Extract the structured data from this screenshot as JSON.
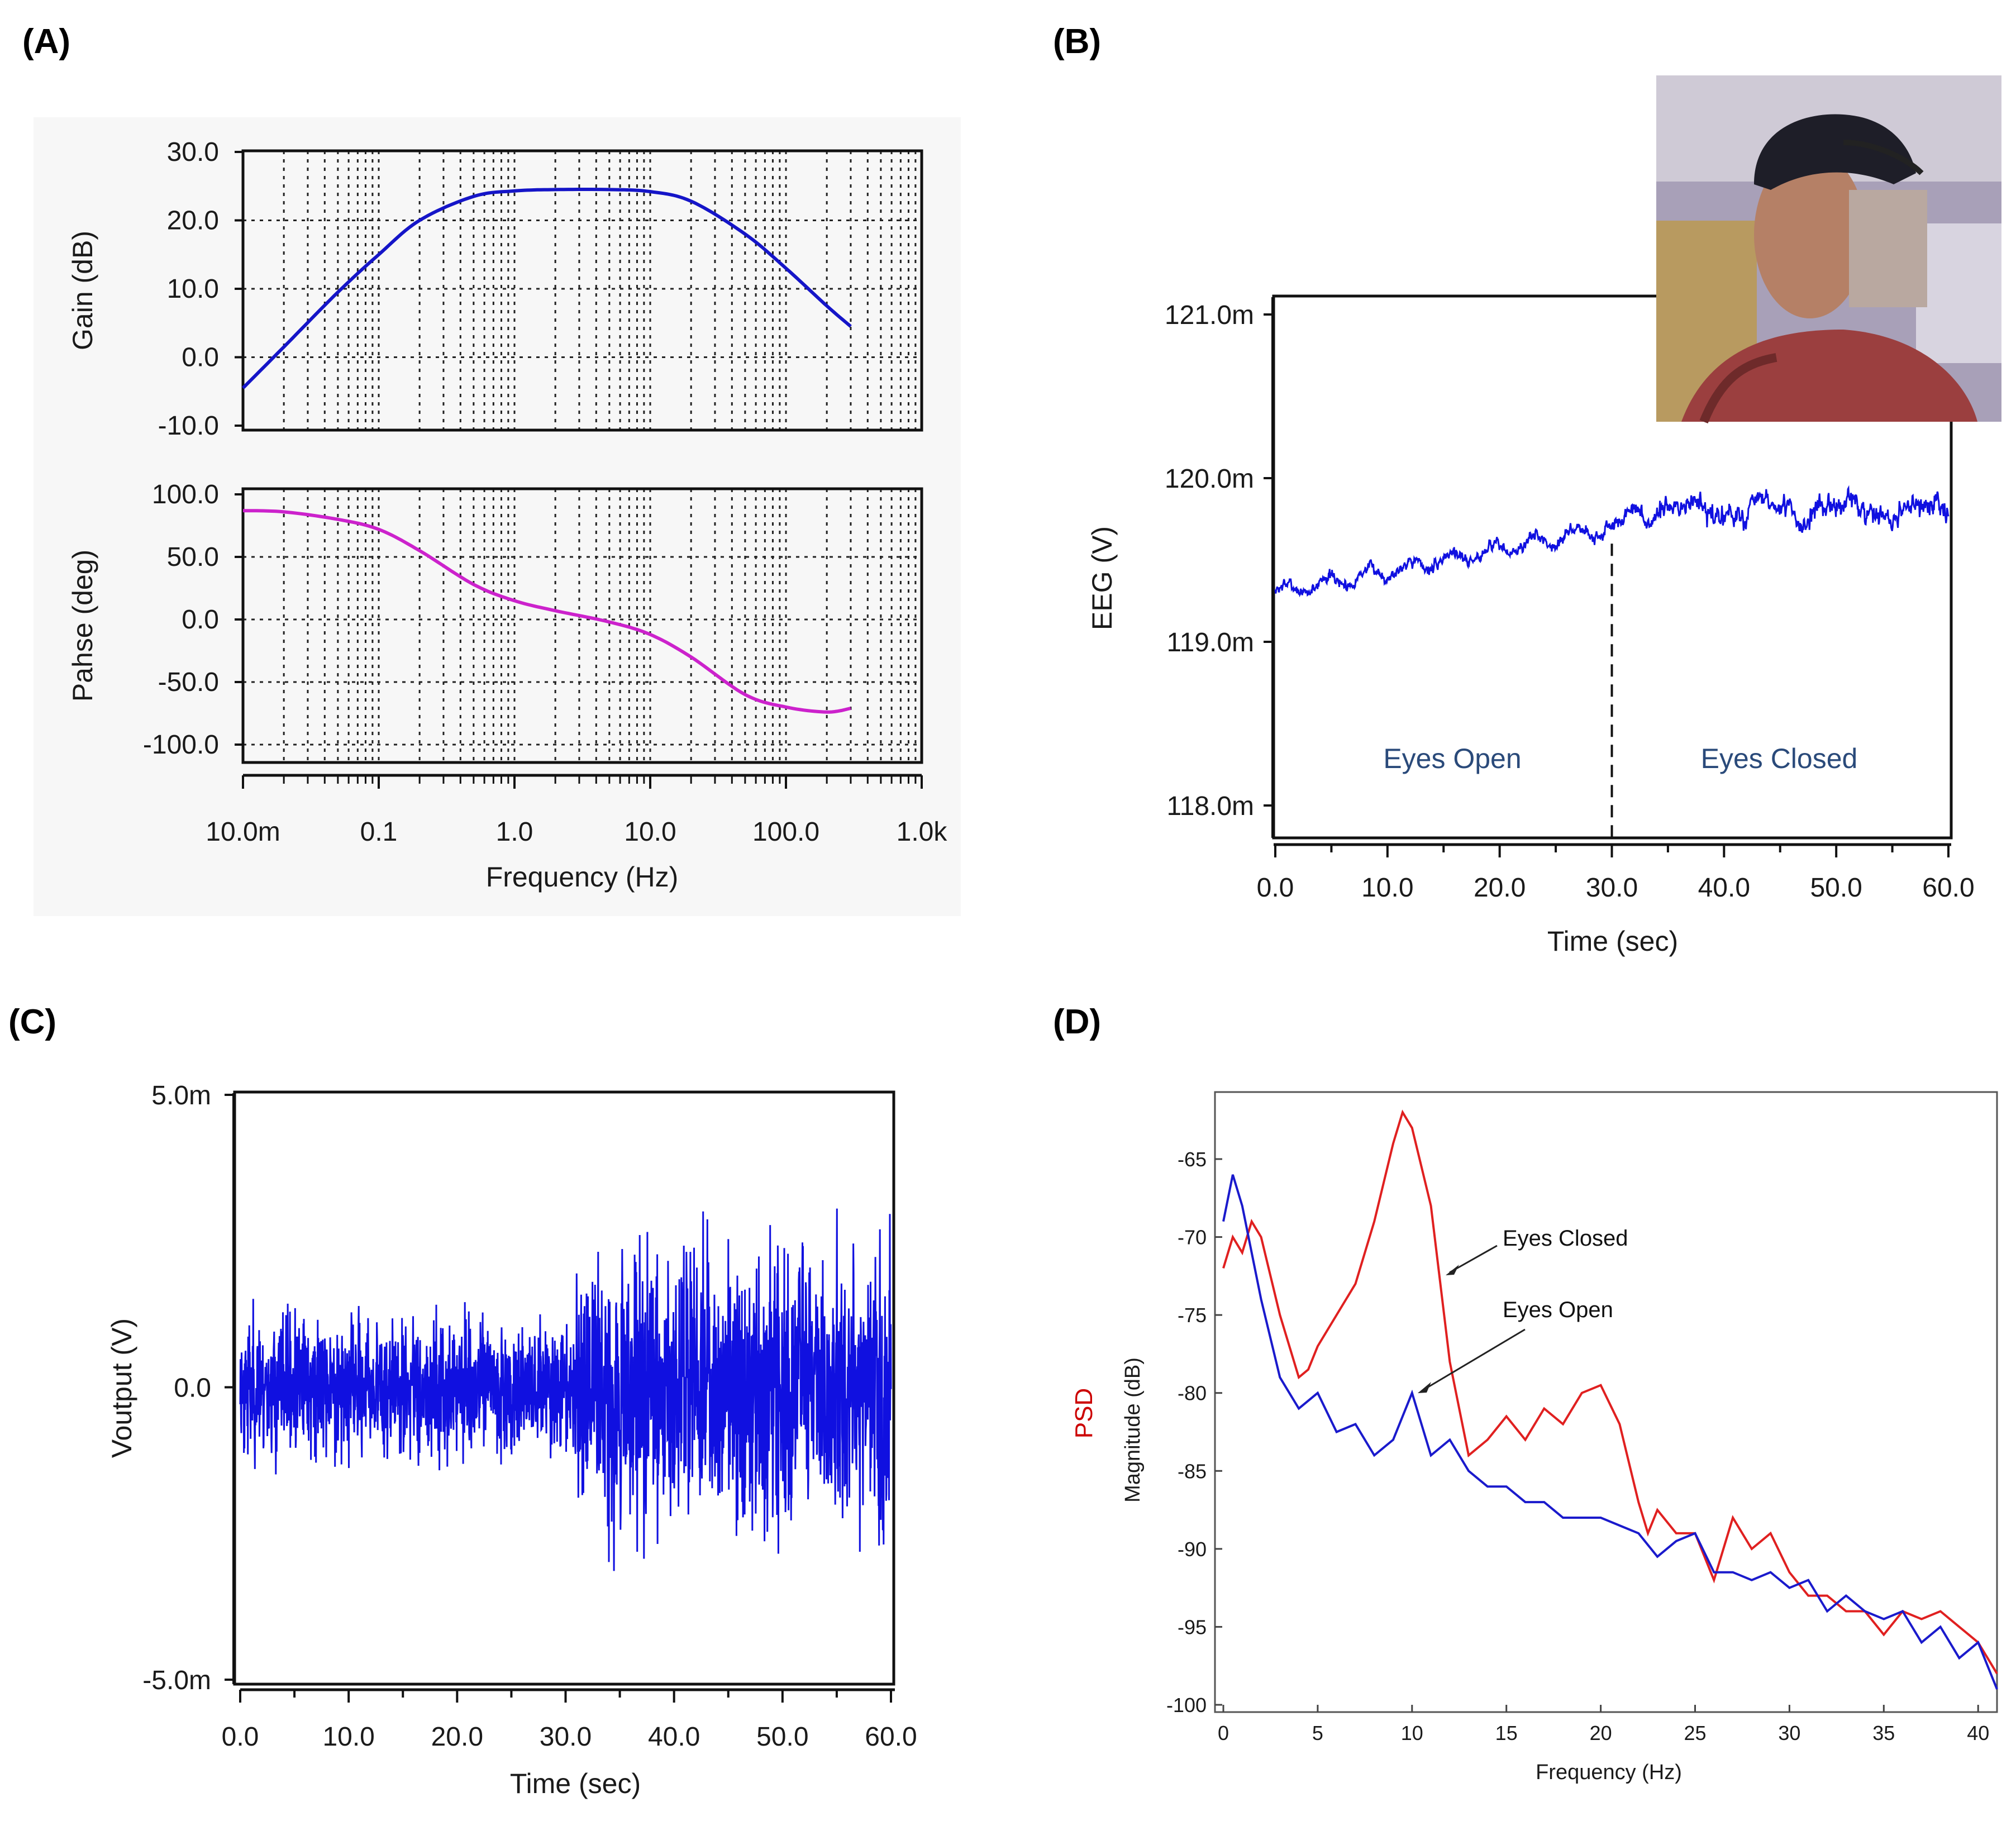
{
  "panel_labels": [
    "(A)",
    "(B)",
    "(C)",
    "(D)"
  ],
  "chart_data": [
    {
      "id": "A-gain",
      "type": "line",
      "xscale": "log",
      "xlim": [
        0.01,
        1000
      ],
      "xticks": [
        "10.0m",
        "0.1",
        "1.0",
        "10.0",
        "100.0",
        "1.0k"
      ],
      "ylabel": "Gain (dB)",
      "ylim": [
        -10,
        30
      ],
      "yticks": [
        "30.0",
        "20.0",
        "10.0",
        "0.0",
        "-10.0"
      ],
      "grid": true,
      "color": "#1515c8",
      "x": [
        0.01,
        0.02,
        0.05,
        0.1,
        0.2,
        0.5,
        1,
        2,
        5,
        10,
        20,
        50,
        100,
        200,
        300
      ],
      "y": [
        -4.5,
        1.5,
        9.5,
        15,
        20,
        23.5,
        24.3,
        24.5,
        24.5,
        24.2,
        22.8,
        18,
        13,
        7.5,
        4.5
      ]
    },
    {
      "id": "A-phase",
      "type": "line",
      "xscale": "log",
      "xlim": [
        0.01,
        1000
      ],
      "xticks": [
        "10.0m",
        "0.1",
        "1.0",
        "10.0",
        "100.0",
        "1.0k"
      ],
      "xlabel": "Frequency (Hz)",
      "ylabel": "Pahse (deg)",
      "ylim": [
        -105,
        105
      ],
      "yticks": [
        "100.0",
        "50.0",
        "0.0",
        "-50.0",
        "-100.0"
      ],
      "grid": true,
      "color": "#cc22cc",
      "x": [
        0.01,
        0.02,
        0.05,
        0.1,
        0.2,
        0.5,
        1,
        2,
        5,
        10,
        20,
        50,
        100,
        200,
        300
      ],
      "y": [
        87,
        86,
        80,
        72,
        55,
        28,
        15,
        7,
        -2,
        -12,
        -30,
        -60,
        -70,
        -74,
        -71
      ]
    },
    {
      "id": "B",
      "type": "line",
      "xlim": [
        0,
        60
      ],
      "xticks": [
        "0.0",
        "10.0",
        "20.0",
        "30.0",
        "40.0",
        "50.0",
        "60.0"
      ],
      "xlabel": "Time (sec)",
      "ylabel": "EEG (V)",
      "ylim": [
        117.8,
        121.2
      ],
      "yticks": [
        "121.0m",
        "120.0m",
        "119.0m",
        "118.0m"
      ],
      "color": "#1010e0",
      "annotations": [
        "Eyes Open",
        "Eyes Closed"
      ],
      "trend": {
        "start": 119.3,
        "at30": 119.7,
        "closed_mean": 119.8,
        "end": 119.8
      },
      "divider_x": 30
    },
    {
      "id": "C",
      "type": "line",
      "xlim": [
        0,
        60
      ],
      "xticks": [
        "0.0",
        "10.0",
        "20.0",
        "30.0",
        "40.0",
        "50.0",
        "60.0"
      ],
      "xlabel": "Time (sec)",
      "ylabel": "Voutput (V)",
      "ylim": [
        -5,
        5
      ],
      "yticks": [
        "5.0m",
        "0.0",
        "-5.0m"
      ],
      "color": "#1010e0",
      "amplitude": {
        "open": 1.0,
        "closed": 1.9
      },
      "change_x": 31
    },
    {
      "id": "D",
      "type": "line",
      "xlim": [
        0,
        41
      ],
      "xticks": [
        "0",
        "5",
        "10",
        "15",
        "20",
        "25",
        "30",
        "35",
        "40"
      ],
      "xlabel": "Frequency (Hz)",
      "ylabel": "Magnitude (dB)",
      "ylim": [
        -101,
        -61.5
      ],
      "yticks": [
        "-65",
        "-70",
        "-75",
        "-80",
        "-85",
        "-90",
        "-95",
        "-100"
      ],
      "side_label": "PSD",
      "series": [
        {
          "name": "Eyes Closed",
          "color": "#e02020",
          "x": [
            0,
            0.5,
            1,
            1.5,
            2,
            3,
            4,
            4.5,
            5,
            6,
            7,
            8,
            9,
            9.5,
            10,
            11,
            12,
            13,
            14,
            15,
            16,
            17,
            18,
            19,
            20,
            21,
            22,
            22.5,
            23,
            24,
            25,
            26,
            27,
            28,
            29,
            30,
            31,
            32,
            33,
            34,
            35,
            36,
            37,
            38,
            39,
            40,
            41
          ],
          "y": [
            -72,
            -70,
            -71,
            -69,
            -70,
            -75,
            -79,
            -78.5,
            -77,
            -75,
            -73,
            -69,
            -64,
            -62,
            -63,
            -68,
            -78,
            -84,
            -83,
            -81.5,
            -83,
            -81,
            -82,
            -80,
            -79.5,
            -82,
            -87,
            -89,
            -87.5,
            -89,
            -89,
            -92,
            -88,
            -90,
            -89,
            -91.5,
            -93,
            -93,
            -94,
            -94,
            -95.5,
            -94,
            -94.5,
            -94,
            -95,
            -96,
            -98
          ]
        },
        {
          "name": "Eyes Open",
          "color": "#1a1acc",
          "x": [
            0,
            0.5,
            1,
            2,
            3,
            4,
            5,
            6,
            7,
            8,
            9,
            10,
            11,
            12,
            13,
            14,
            15,
            16,
            17,
            18,
            19,
            20,
            21,
            22,
            23,
            24,
            25,
            26,
            27,
            28,
            29,
            30,
            31,
            32,
            33,
            34,
            35,
            36,
            37,
            38,
            39,
            40,
            41
          ],
          "y": [
            -69,
            -66,
            -68,
            -74,
            -79,
            -81,
            -80,
            -82.5,
            -82,
            -84,
            -83,
            -80,
            -84,
            -83,
            -85,
            -86,
            -86,
            -87,
            -87,
            -88,
            -88,
            -88,
            -88.5,
            -89,
            -90.5,
            -89.5,
            -89,
            -91.5,
            -91.5,
            -92,
            -91.5,
            -92.5,
            -92,
            -94,
            -93,
            -94,
            -94.5,
            -94,
            -96,
            -95,
            -97,
            -96,
            -99
          ]
        }
      ],
      "annotations": [
        "Eyes Closed",
        "Eyes Open"
      ]
    }
  ]
}
